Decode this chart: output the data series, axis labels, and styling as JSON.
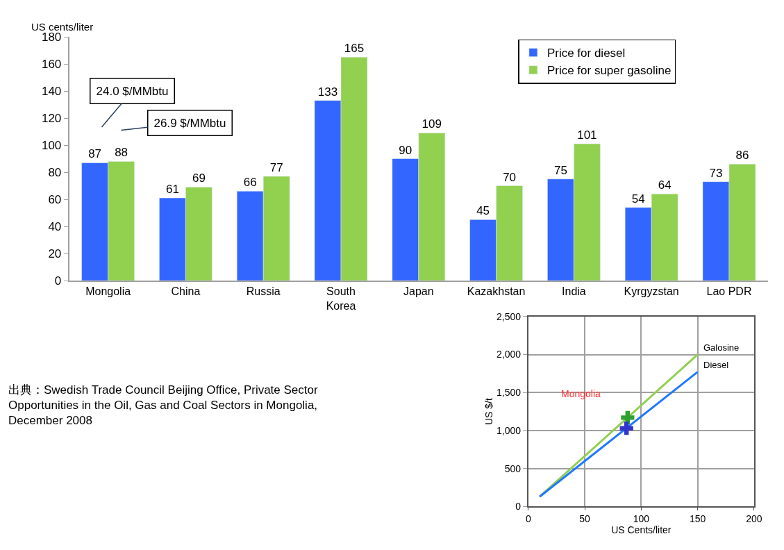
{
  "chart_data": [
    {
      "type": "bar",
      "ylabel": "US cents/liter",
      "categories": [
        "Mongolia",
        "China",
        "Russia",
        "South Korea",
        "Japan",
        "Kazakhstan",
        "India",
        "Kyrgyzstan",
        "Lao PDR"
      ],
      "series": [
        {
          "name": "Price for diesel",
          "color": "#3366ff",
          "values": [
            87,
            61,
            66,
            133,
            90,
            45,
            75,
            54,
            73
          ]
        },
        {
          "name": "Price for super gasoline",
          "color": "#92d050",
          "values": [
            88,
            69,
            77,
            165,
            109,
            70,
            101,
            64,
            86
          ]
        }
      ],
      "ylim": [
        0,
        180
      ],
      "yticks": [
        0,
        20,
        40,
        60,
        80,
        100,
        120,
        140,
        160,
        180
      ],
      "data_labels": true,
      "grid": false,
      "legend": "top right",
      "annotations": [
        "24.0 $/MMbtu",
        "26.9 $/MMbtu",
        "出典：Swedish Trade Council Beijing Office, Private Sector Opportunities in the Oil, Gas and Coal Sectors in Mongolia, December 2008"
      ]
    },
    {
      "type": "line",
      "xlabel": "US Cents/liter",
      "ylabel": "US $/t",
      "marker": "none",
      "grid": true,
      "legend": false,
      "series": [
        {
          "name": "Galosine",
          "color": "#92d050",
          "x": [
            10,
            150
          ],
          "values": [
            130,
            2000
          ]
        },
        {
          "name": "Diesel",
          "color": "#1f78ff",
          "x": [
            10,
            150
          ],
          "values": [
            130,
            1770
          ]
        },
        {
          "type": "scatter",
          "marker": "cross",
          "color": "#2ca02c",
          "x": [
            88
          ],
          "values": [
            1170
          ]
        },
        {
          "type": "scatter",
          "marker": "cross",
          "color": "#3333cc",
          "x": [
            87
          ],
          "values": [
            1030
          ]
        }
      ],
      "xlim": [
        0,
        200
      ],
      "xticks": [
        0,
        50,
        100,
        150,
        200
      ],
      "ylim": [
        0,
        2500
      ],
      "yticks": [
        0,
        {
          "value": 500,
          "label": "500"
        },
        {
          "value": 1000,
          "label": "1,000"
        },
        {
          "value": 1500,
          "label": "1,500"
        },
        {
          "value": 2000,
          "label": "2,000"
        },
        {
          "value": 2500,
          "label": "2,500"
        }
      ],
      "annotations": [
        "Mongolia"
      ]
    }
  ]
}
